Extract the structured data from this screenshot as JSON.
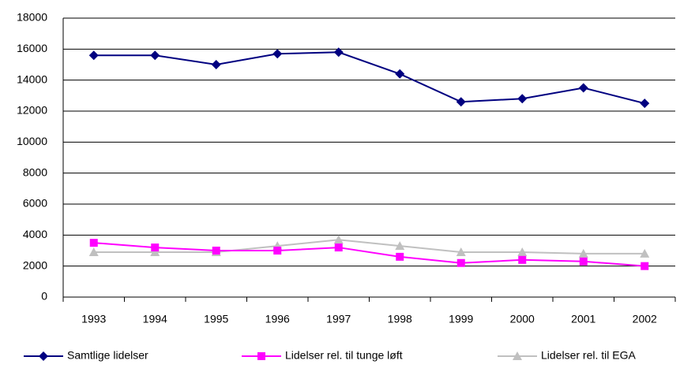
{
  "chart_data": {
    "type": "line",
    "categories": [
      "1993",
      "1994",
      "1995",
      "1996",
      "1997",
      "1998",
      "1999",
      "2000",
      "2001",
      "2002"
    ],
    "series": [
      {
        "name": "Samtlige lidelser",
        "color": "#000080",
        "marker": "diamond",
        "values": [
          15600,
          15600,
          15000,
          15700,
          15800,
          14400,
          12600,
          12800,
          13500,
          12500
        ]
      },
      {
        "name": "Lidelser rel. til tunge løft",
        "color": "#ff00ff",
        "marker": "square",
        "values": [
          3500,
          3200,
          3000,
          3000,
          3200,
          2600,
          2200,
          2400,
          2300,
          2000
        ]
      },
      {
        "name": "Lidelser rel. til EGA",
        "color": "#c0c0c0",
        "marker": "triangle",
        "values": [
          2900,
          2900,
          2900,
          3300,
          3700,
          3300,
          2900,
          2900,
          2800,
          2800
        ]
      }
    ],
    "ylim": [
      0,
      18000
    ],
    "yticks": [
      0,
      2000,
      4000,
      6000,
      8000,
      10000,
      12000,
      14000,
      16000,
      18000
    ],
    "grid": true
  }
}
